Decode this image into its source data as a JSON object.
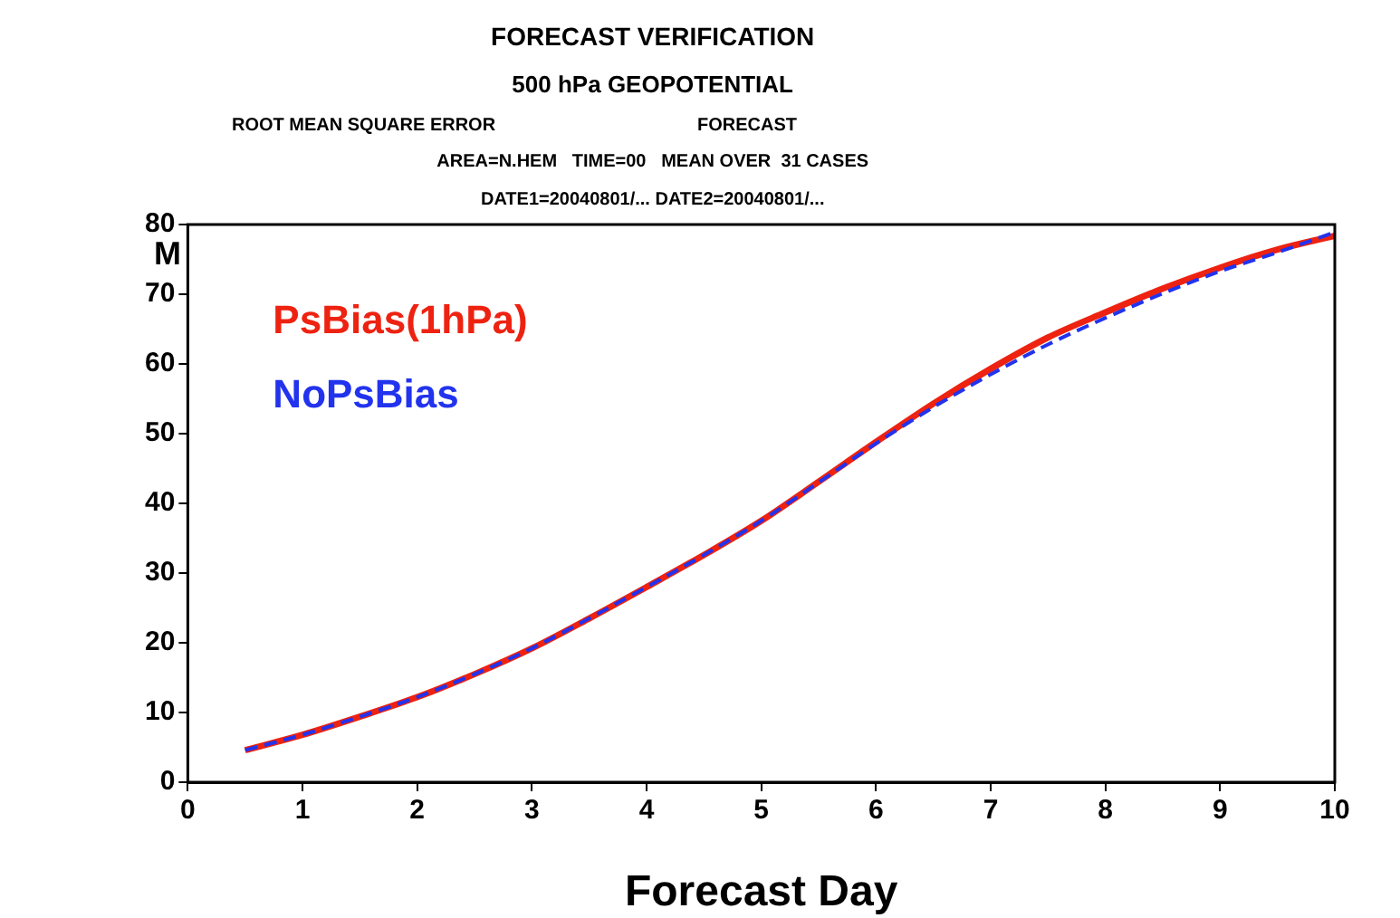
{
  "chart_data": {
    "type": "line",
    "title": "FORECAST VERIFICATION",
    "subtitle": "500 hPa GEOPOTENTIAL",
    "annotations": [
      "ROOT MEAN SQUARE ERROR",
      "FORECAST",
      "AREA=N.HEM   TIME=00   MEAN OVER  31 CASES",
      "DATE1=20040801/... DATE2=20040801/..."
    ],
    "xlabel": "Forecast Day",
    "ylabel": "M",
    "x": [
      0.5,
      1,
      1.5,
      2,
      2.5,
      3,
      3.5,
      4,
      4.5,
      5,
      5.5,
      6,
      6.5,
      7,
      7.5,
      8,
      8.5,
      9,
      9.5,
      10
    ],
    "series": [
      {
        "name": "PsBias(1hPa)",
        "color": "#ee2211",
        "line_style": "solid",
        "values": [
          4.6,
          6.8,
          9.4,
          12.2,
          15.5,
          19.2,
          23.5,
          28.0,
          32.6,
          37.5,
          43.1,
          48.8,
          54.3,
          59.3,
          63.8,
          67.4,
          70.8,
          73.8,
          76.4,
          78.4
        ]
      },
      {
        "name": "NoPsBias",
        "color": "#2233ee",
        "line_style": "dashed",
        "values": [
          4.6,
          6.8,
          9.4,
          12.2,
          15.5,
          19.2,
          23.5,
          28.0,
          32.6,
          37.5,
          43.0,
          48.6,
          53.8,
          58.5,
          62.8,
          66.6,
          70.1,
          73.3,
          76.0,
          78.9
        ]
      }
    ],
    "xlim": [
      0,
      10
    ],
    "xticks": [
      0,
      1,
      2,
      3,
      4,
      5,
      6,
      7,
      8,
      9,
      10
    ],
    "ylim": [
      0,
      80
    ],
    "yticks": [
      0,
      10,
      20,
      30,
      40,
      50,
      60,
      70,
      80
    ],
    "grid": false,
    "legend": "top left",
    "marker": "none"
  }
}
